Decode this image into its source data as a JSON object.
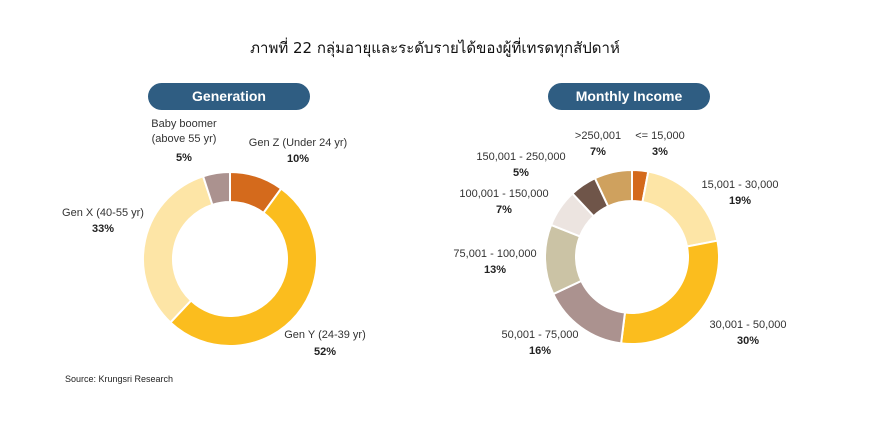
{
  "title": "ภาพที่ 22 กลุ่มอายุและระดับรายได้ของผู้ที่เทรดทุกสัปดาห์",
  "source": "Source: Krungsri Research",
  "chart_data": [
    {
      "type": "pie",
      "title": "Generation",
      "slices": [
        {
          "label": "Gen Z  (Under 24 yr)",
          "value": 10,
          "pct_label": "10%",
          "color": "#d46a1c"
        },
        {
          "label": "Gen Y (24-39 yr)",
          "value": 52,
          "pct_label": "52%",
          "color": "#fbbd1e"
        },
        {
          "label": "Gen X  (40-55 yr)",
          "value": 33,
          "pct_label": "33%",
          "color": "#fde5a6"
        },
        {
          "label": "Baby boomer (above 55 yr)",
          "value": 5,
          "pct_label": "5%",
          "color": "#ab928f"
        }
      ]
    },
    {
      "type": "pie",
      "title": "Monthly Income",
      "slices": [
        {
          "label": "<= 15,000",
          "value": 3,
          "pct_label": "3%",
          "color": "#d46a1c"
        },
        {
          "label": "15,001 - 30,000",
          "value": 19,
          "pct_label": "19%",
          "color": "#fde5a6"
        },
        {
          "label": "30,001 - 50,000",
          "value": 30,
          "pct_label": "30%",
          "color": "#fbbd1e"
        },
        {
          "label": "50,001 - 75,000",
          "value": 16,
          "pct_label": "16%",
          "color": "#ab928f"
        },
        {
          "label": "75,001 - 100,000",
          "value": 13,
          "pct_label": "13%",
          "color": "#cbc3a5"
        },
        {
          "label": "100,001 - 150,000",
          "value": 7,
          "pct_label": "7%",
          "color": "#ece4e0"
        },
        {
          "label": "150,001 - 250,000",
          "value": 5,
          "pct_label": "5%",
          "color": "#6f5549"
        },
        {
          "label": ">250,001",
          "value": 7,
          "pct_label": "7%",
          "color": "#cfa15e"
        }
      ]
    }
  ]
}
